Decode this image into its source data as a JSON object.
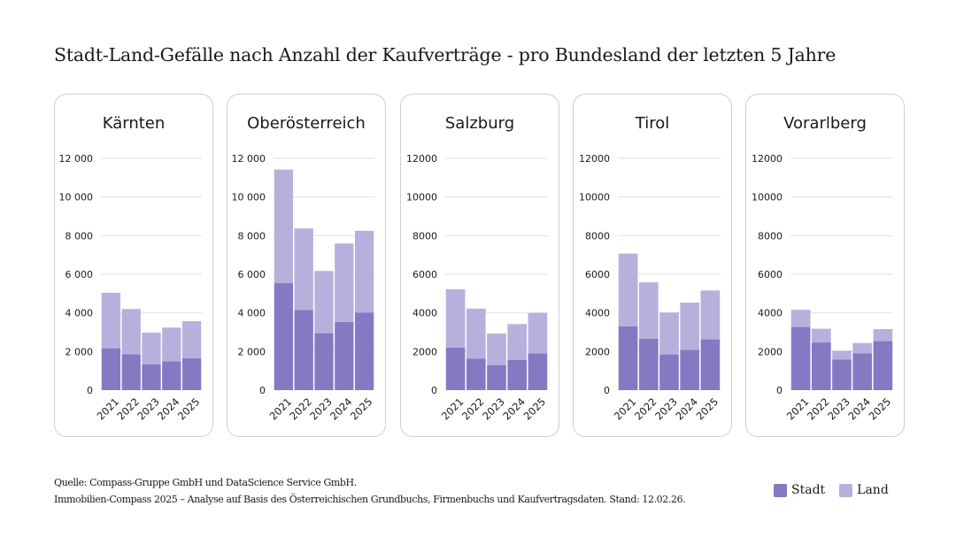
{
  "title": "Stadt-Land-Gefälle nach Anzahl der Kaufverträge - pro Bundesland der letzten 5 Jahre",
  "colors": {
    "stadt": "#8679c3",
    "land": "#b8b0dc",
    "grid": "#e2e2e2"
  },
  "legend": {
    "stadt": "Stadt",
    "land": "Land"
  },
  "footer": {
    "line1": "Quelle: Compass-Gruppe GmbH und DataScience Service GmbH.",
    "line2": "Immobilien-Compass 2025 – Analyse auf Basis des Österreichischen Grundbuchs, Firmenbuchs und Kaufvertragsdaten. Stand: 12.02.26."
  },
  "chart_data": [
    {
      "type": "bar",
      "stacked": true,
      "title": "Kärnten",
      "categories": [
        "2021",
        "2022",
        "2023",
        "2024",
        "2025"
      ],
      "ylim": [
        0,
        12000
      ],
      "grid": true,
      "yticks": [
        "0",
        "2 000",
        "4 000",
        "6 000",
        "8 000",
        "10 000",
        "12 000"
      ],
      "series": [
        {
          "name": "Stadt",
          "values": [
            2170,
            1860,
            1330,
            1500,
            1650
          ]
        },
        {
          "name": "Land",
          "values": [
            2870,
            2340,
            1650,
            1740,
            1920
          ]
        }
      ]
    },
    {
      "type": "bar",
      "stacked": true,
      "title": "Oberösterreich",
      "categories": [
        "2021",
        "2022",
        "2023",
        "2024",
        "2025"
      ],
      "ylim": [
        0,
        12000
      ],
      "grid": true,
      "yticks": [
        "0",
        "2 000",
        "4 000",
        "6 000",
        "8 000",
        "10 000",
        "12 000"
      ],
      "series": [
        {
          "name": "Stadt",
          "values": [
            5540,
            4150,
            2950,
            3530,
            4020
          ]
        },
        {
          "name": "Land",
          "values": [
            5880,
            4220,
            3220,
            4060,
            4230
          ]
        }
      ]
    },
    {
      "type": "bar",
      "stacked": true,
      "title": "Salzburg",
      "categories": [
        "2021",
        "2022",
        "2023",
        "2024",
        "2025"
      ],
      "ylim": [
        0,
        12000
      ],
      "grid": true,
      "yticks": [
        "0",
        "2000",
        "4000",
        "6000",
        "8000",
        "10000",
        "12000"
      ],
      "series": [
        {
          "name": "Stadt",
          "values": [
            2210,
            1630,
            1300,
            1560,
            1910
          ]
        },
        {
          "name": "Land",
          "values": [
            3010,
            2590,
            1630,
            1860,
            2090
          ]
        }
      ]
    },
    {
      "type": "bar",
      "stacked": true,
      "title": "Tirol",
      "categories": [
        "2021",
        "2022",
        "2023",
        "2024",
        "2025"
      ],
      "ylim": [
        0,
        12000
      ],
      "grid": true,
      "yticks": [
        "0",
        "2000",
        "4000",
        "6000",
        "8000",
        "10000",
        "12000"
      ],
      "series": [
        {
          "name": "Stadt",
          "values": [
            3310,
            2670,
            1850,
            2090,
            2630
          ]
        },
        {
          "name": "Land",
          "values": [
            3760,
            2910,
            2170,
            2440,
            2530
          ]
        }
      ]
    },
    {
      "type": "bar",
      "stacked": true,
      "title": "Vorarlberg",
      "categories": [
        "2021",
        "2022",
        "2023",
        "2024",
        "2025"
      ],
      "ylim": [
        0,
        12000
      ],
      "grid": true,
      "yticks": [
        "0",
        "2000",
        "4000",
        "6000",
        "8000",
        "10000",
        "12000"
      ],
      "series": [
        {
          "name": "Stadt",
          "values": [
            3270,
            2470,
            1580,
            1900,
            2540
          ]
        },
        {
          "name": "Land",
          "values": [
            890,
            710,
            460,
            540,
            620
          ]
        }
      ]
    }
  ]
}
